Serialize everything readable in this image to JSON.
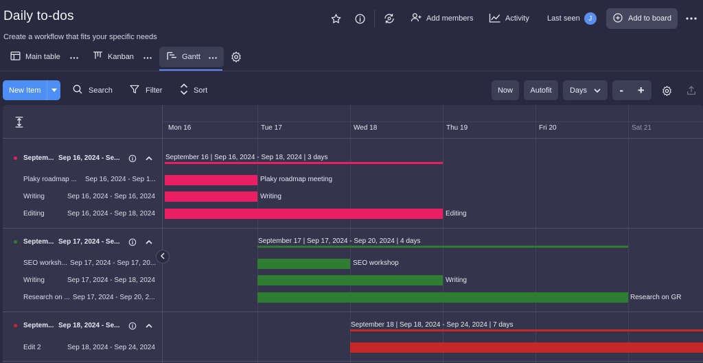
{
  "header": {
    "title": "Daily to-dos",
    "subtitle": "Create a workflow that fits your specific needs",
    "add_members": "Add members",
    "activity": "Activity",
    "last_seen": "Last seen",
    "avatar_initial": "J",
    "add_to_board": "Add to board"
  },
  "tabs": [
    {
      "label": "Main table",
      "icon": "table-icon"
    },
    {
      "label": "Kanban",
      "icon": "kanban-icon"
    },
    {
      "label": "Gantt",
      "icon": "gantt-icon",
      "active": true
    }
  ],
  "toolbar": {
    "new_item": "New Item",
    "search": "Search",
    "filter": "Filter",
    "sort": "Sort",
    "now": "Now",
    "autofit": "Autofit",
    "scale": "Days",
    "zoom_out": "-",
    "zoom_in": "+"
  },
  "timeline": {
    "days": [
      "Mon 16",
      "Tue 17",
      "Wed 18",
      "Thu 19",
      "Fri 20",
      "Sat 21"
    ]
  },
  "groups": [
    {
      "title": "Septem...",
      "dates": "Sep 16, 2024 - Se...",
      "color": "#e91e63",
      "summary": "September 16 | Sep 16, 2024 - Sep 18, 2024 | 3 days",
      "items": [
        {
          "name": "Plaky roadmap ...",
          "dates": "Sep 16, 2024 - Sep 1...",
          "bar_label": "Plaky roadmap meeting"
        },
        {
          "name": "Writing",
          "dates": "Sep 16, 2024 - Sep 16, 2024",
          "bar_label": "Writing"
        },
        {
          "name": "Editing",
          "dates": "Sep 16, 2024 - Sep 18, 2024",
          "bar_label": "Editing"
        }
      ]
    },
    {
      "title": "Septem...",
      "dates": "Sep 17, 2024 - Se...",
      "color": "#2e7d32",
      "summary": "September 17 | Sep 17, 2024 - Sep 20, 2024 | 4 days",
      "items": [
        {
          "name": "SEO worksh...",
          "dates": "Sep 17, 2024 - Sep 17, 20...",
          "bar_label": "SEO workshop"
        },
        {
          "name": "Writing",
          "dates": "Sep 17, 2024 - Sep 18, 2024",
          "bar_label": "Writing"
        },
        {
          "name": "Research on ...",
          "dates": "Sep 17, 2024 - Sep 20, 2...",
          "bar_label": "Research on GR"
        }
      ]
    },
    {
      "title": "Septem...",
      "dates": "Sep 18, 2024 - Se...",
      "color": "#c62828",
      "summary": "September 18 | Sep 18, 2024 - Sep 24, 2024 | 7 days",
      "items": [
        {
          "name": "Edit 2",
          "dates": "Sep 18, 2024 - Sep 24, 2024",
          "bar_label": ""
        }
      ]
    }
  ]
}
